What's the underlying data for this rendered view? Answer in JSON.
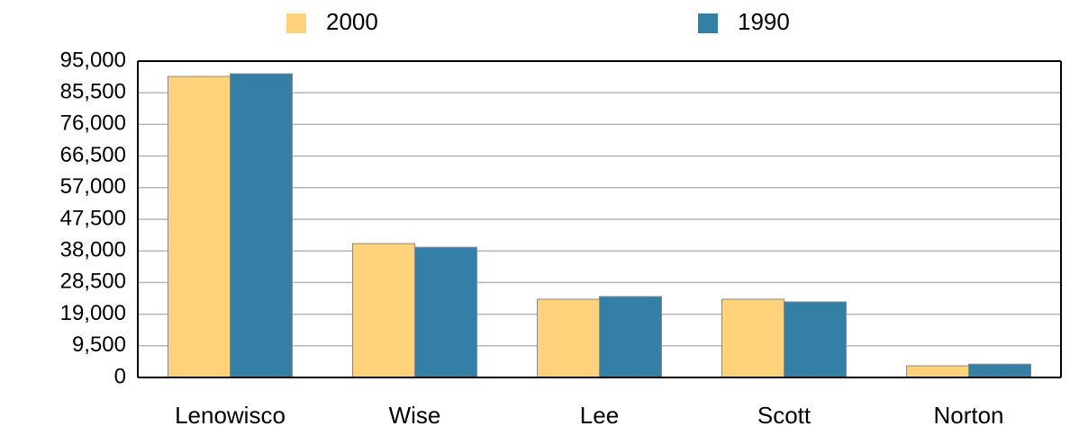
{
  "chart_data": {
    "type": "bar",
    "categories": [
      "Lenowisco",
      "Wise",
      "Lee",
      "Scott",
      "Norton"
    ],
    "series": [
      {
        "name": "2000",
        "color": "#fdd27b",
        "values": [
          90400,
          40200,
          23500,
          23500,
          3500
        ]
      },
      {
        "name": "1990",
        "color": "#347fa5",
        "values": [
          91200,
          39100,
          24300,
          22700,
          4000
        ]
      }
    ],
    "ylim": [
      0,
      95000
    ],
    "yticks": [
      0,
      {
        "value": 9500,
        "label": "9,500"
      },
      {
        "value": 19000,
        "label": "19,000"
      },
      {
        "value": 28500,
        "label": "28,500"
      },
      {
        "value": 38000,
        "label": "38,000"
      },
      {
        "value": 47500,
        "label": "47,500"
      },
      {
        "value": 57000,
        "label": "57,000"
      },
      {
        "value": 66500,
        "label": "66,500"
      },
      {
        "value": 76000,
        "label": "76,000"
      },
      {
        "value": 85500,
        "label": "85,500"
      },
      {
        "value": 95000,
        "label": "95,000"
      }
    ],
    "grid": true,
    "legend": "top"
  }
}
